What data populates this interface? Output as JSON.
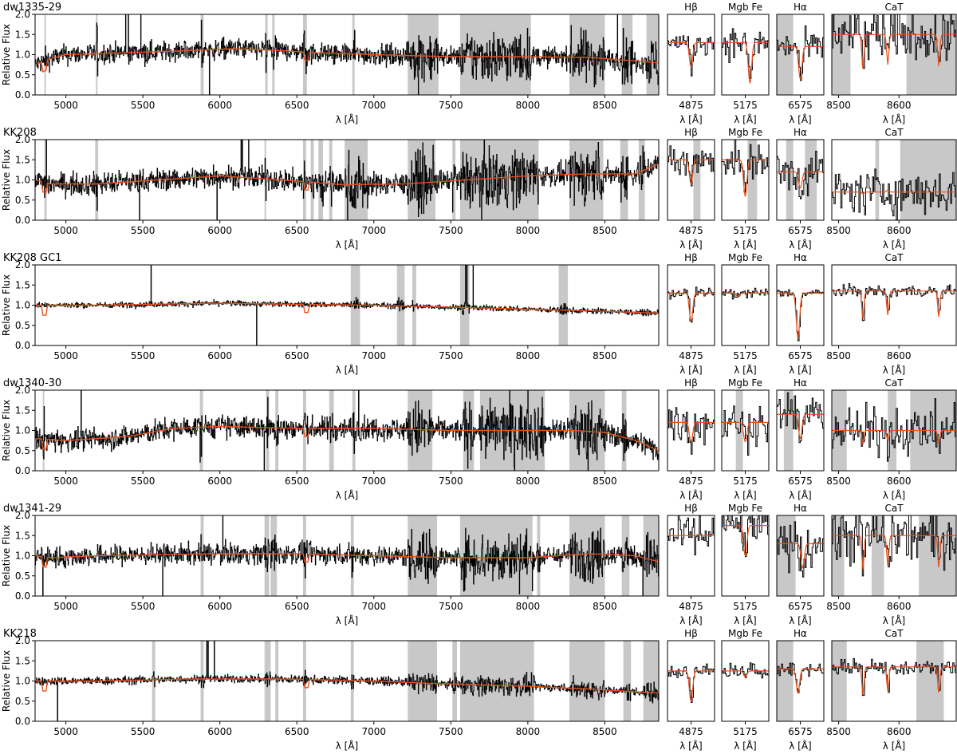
{
  "figure": {
    "ylabel": "Relative Flux",
    "xlabel": "λ [Å]",
    "colors": {
      "data": "#000000",
      "model": "#e8501c",
      "mask": "#c8c8c8"
    }
  },
  "chart_data": [
    {
      "type": "line",
      "title": "dw1335-29",
      "rows_note": "row 1",
      "main": {
        "xlim": [
          4800,
          8850
        ],
        "ylim": [
          0.0,
          2.0
        ],
        "xticks": [
          5000,
          5500,
          6000,
          6500,
          7000,
          7500,
          8000,
          8500
        ],
        "yticks": [
          0.0,
          0.5,
          1.0,
          1.5,
          2.0
        ],
        "noise": 0.18,
        "mask_ranges": [
          [
            4860,
            4870
          ],
          [
            5195,
            5205
          ],
          [
            5875,
            5895
          ],
          [
            6295,
            6310
          ],
          [
            6340,
            6355
          ],
          [
            6540,
            6565
          ],
          [
            6860,
            6875
          ],
          [
            7220,
            7420
          ],
          [
            7560,
            8020
          ],
          [
            8270,
            8500
          ],
          [
            8610,
            8680
          ],
          [
            8770,
            8850
          ]
        ],
        "model": [
          [
            4800,
            0.75
          ],
          [
            4900,
            0.9
          ],
          [
            5000,
            1.0
          ],
          [
            5400,
            1.05
          ],
          [
            5800,
            1.1
          ],
          [
            6100,
            1.15
          ],
          [
            6400,
            1.1
          ],
          [
            6600,
            1.05
          ],
          [
            7000,
            1.0
          ],
          [
            7500,
            0.95
          ],
          [
            8000,
            0.95
          ],
          [
            8400,
            0.93
          ],
          [
            8850,
            0.8
          ]
        ]
      },
      "zooms": [
        {
          "title": "Hβ",
          "xtick": "4875",
          "mask": [],
          "line": [
            0.5,
            0.35
          ],
          "level": 1.3,
          "noise": 0.2
        },
        {
          "title": "Mgb Fe",
          "xtick": "5175",
          "mask": [],
          "line": [
            0.6,
            0.15
          ],
          "level": 1.3,
          "noise": 0.25
        },
        {
          "title": "Hα",
          "xtick": "6575",
          "mask": [
            [
              0.0,
              0.35
            ]
          ],
          "line": [
            0.5,
            0.2
          ],
          "level": 1.2,
          "noise": 0.25
        },
        {
          "title": "CaT",
          "xticks": [
            "8500",
            "8600"
          ],
          "mask": [
            [
              0.0,
              0.15
            ],
            [
              0.6,
              1.0
            ]
          ],
          "level": 1.5,
          "noise": 0.5
        }
      ]
    },
    {
      "type": "line",
      "title": "KK208",
      "main": {
        "xlim": [
          4800,
          8850
        ],
        "ylim": [
          0.0,
          2.0
        ],
        "xticks": [
          5000,
          5500,
          6000,
          6500,
          7000,
          7500,
          8000,
          8500
        ],
        "yticks": [
          0.0,
          0.5,
          1.0,
          1.5,
          2.0
        ],
        "noise": 0.2,
        "mask_ranges": [
          [
            4860,
            4875
          ],
          [
            5190,
            5210
          ],
          [
            6290,
            6300
          ],
          [
            6540,
            6560
          ],
          [
            6590,
            6610
          ],
          [
            6640,
            6670
          ],
          [
            6710,
            6730
          ],
          [
            6810,
            6960
          ],
          [
            7220,
            7400
          ],
          [
            7510,
            7530
          ],
          [
            7560,
            8070
          ],
          [
            8270,
            8490
          ],
          [
            8600,
            8650
          ],
          [
            8720,
            8760
          ]
        ],
        "model": [
          [
            4800,
            1.0
          ],
          [
            4900,
            0.9
          ],
          [
            5200,
            0.9
          ],
          [
            5600,
            1.0
          ],
          [
            6000,
            1.1
          ],
          [
            6400,
            1.0
          ],
          [
            6800,
            0.88
          ],
          [
            7200,
            0.9
          ],
          [
            7600,
            1.0
          ],
          [
            8000,
            1.1
          ],
          [
            8400,
            1.15
          ],
          [
            8700,
            1.15
          ],
          [
            8850,
            1.4
          ]
        ]
      },
      "zooms": [
        {
          "title": "Hβ",
          "xtick": "4875",
          "mask": [
            [
              0.55,
              0.7
            ]
          ],
          "line": [
            0.5,
            0.8
          ],
          "level": 1.5,
          "noise": 0.3
        },
        {
          "title": "Mgb Fe",
          "xtick": "5175",
          "mask": [
            [
              0.55,
              0.75
            ]
          ],
          "line": [
            0.5,
            0.3
          ],
          "level": 1.5,
          "noise": 0.3
        },
        {
          "title": "Hα",
          "xtick": "6575",
          "mask": [
            [
              0.2,
              0.35
            ],
            [
              0.6,
              0.85
            ]
          ],
          "line": [
            0.5,
            0.4
          ],
          "level": 1.2,
          "noise": 0.4
        },
        {
          "title": "CaT",
          "xticks": [
            "8500",
            "8600"
          ],
          "mask": [
            [
              0.35,
              0.38
            ],
            [
              0.55,
              1.0
            ]
          ],
          "level": 0.7,
          "noise": 0.4
        }
      ]
    },
    {
      "type": "line",
      "title": "KK208 GC1",
      "main": {
        "xlim": [
          4800,
          8850
        ],
        "ylim": [
          0.0,
          2.0
        ],
        "xticks": [
          5000,
          5500,
          6000,
          6500,
          7000,
          7500,
          8000,
          8500
        ],
        "yticks": [
          0.0,
          0.5,
          1.0,
          1.5,
          2.0
        ],
        "noise": 0.05,
        "mask_ranges": [
          [
            6850,
            6910
          ],
          [
            7150,
            7200
          ],
          [
            7250,
            7275
          ],
          [
            7560,
            7620
          ],
          [
            8200,
            8260
          ]
        ],
        "model": [
          [
            4800,
            1.0
          ],
          [
            5200,
            1.0
          ],
          [
            6000,
            1.05
          ],
          [
            6500,
            1.02
          ],
          [
            7000,
            1.0
          ],
          [
            7500,
            0.95
          ],
          [
            8000,
            0.9
          ],
          [
            8500,
            0.85
          ],
          [
            8850,
            0.8
          ]
        ]
      },
      "zooms": [
        {
          "title": "Hβ",
          "xtick": "4875",
          "mask": [],
          "line": [
            0.5,
            0.3
          ],
          "level": 1.3,
          "noise": 0.1
        },
        {
          "title": "Mgb Fe",
          "xtick": "5175",
          "mask": [],
          "line": [
            0.35,
            0.6
          ],
          "level": 1.3,
          "noise": 0.1
        },
        {
          "title": "Hα",
          "xtick": "6575",
          "mask": [],
          "line": [
            0.45,
            0.1
          ],
          "level": 1.3,
          "noise": 0.08
        },
        {
          "title": "CaT",
          "xticks": [
            "8500",
            "8600"
          ],
          "mask": [],
          "level": 1.35,
          "noise": 0.1
        }
      ]
    },
    {
      "type": "line",
      "title": "dw1340-30",
      "main": {
        "xlim": [
          4800,
          8850
        ],
        "ylim": [
          0.0,
          2.0
        ],
        "xticks": [
          5000,
          5500,
          6000,
          6500,
          7000,
          7500,
          8000,
          8500
        ],
        "yticks": [
          0.0,
          0.5,
          1.0,
          1.5,
          2.0
        ],
        "noise": 0.2,
        "mask_ranges": [
          [
            4850,
            4860
          ],
          [
            5870,
            5890
          ],
          [
            6300,
            6320
          ],
          [
            6360,
            6380
          ],
          [
            6540,
            6560
          ],
          [
            6710,
            6740
          ],
          [
            6860,
            6880
          ],
          [
            7220,
            7380
          ],
          [
            7580,
            7650
          ],
          [
            7690,
            8110
          ],
          [
            8270,
            8500
          ],
          [
            8610,
            8640
          ]
        ],
        "model": [
          [
            4800,
            0.8
          ],
          [
            5000,
            0.75
          ],
          [
            5400,
            0.85
          ],
          [
            5700,
            1.05
          ],
          [
            6000,
            1.1
          ],
          [
            6500,
            1.05
          ],
          [
            7000,
            1.05
          ],
          [
            7500,
            1.0
          ],
          [
            8000,
            1.0
          ],
          [
            8300,
            1.0
          ],
          [
            8500,
            0.95
          ],
          [
            8700,
            0.75
          ],
          [
            8850,
            0.5
          ]
        ]
      },
      "zooms": [
        {
          "title": "Hβ",
          "xtick": "4875",
          "mask": [],
          "line": [
            0.5,
            0.8
          ],
          "level": 1.2,
          "noise": 0.4
        },
        {
          "title": "Mgb Fe",
          "xtick": "5175",
          "mask": [
            [
              0.3,
              0.45
            ]
          ],
          "line": [
            0.5,
            0.7
          ],
          "level": 1.2,
          "noise": 0.35
        },
        {
          "title": "Hα",
          "xtick": "6575",
          "mask": [
            [
              0.15,
              0.35
            ]
          ],
          "line": [
            0.5,
            0.4
          ],
          "level": 1.4,
          "noise": 0.35
        },
        {
          "title": "CaT",
          "xticks": [
            "8500",
            "8600"
          ],
          "mask": [
            [
              0.0,
              0.12
            ],
            [
              0.45,
              0.52
            ],
            [
              0.63,
              1.0
            ]
          ],
          "level": 1.0,
          "noise": 0.4
        }
      ]
    },
    {
      "type": "line",
      "title": "dw1341-29",
      "main": {
        "xlim": [
          4800,
          8850
        ],
        "ylim": [
          0.0,
          2.0
        ],
        "xticks": [
          5000,
          5500,
          6000,
          6500,
          7000,
          7500,
          8000,
          8500
        ],
        "yticks": [
          0.0,
          0.5,
          1.0,
          1.5,
          2.0
        ],
        "noise": 0.18,
        "mask_ranges": [
          [
            5875,
            5895
          ],
          [
            6290,
            6320
          ],
          [
            6330,
            6370
          ],
          [
            6540,
            6560
          ],
          [
            6850,
            6870
          ],
          [
            7220,
            7410
          ],
          [
            7560,
            8030
          ],
          [
            8060,
            8080
          ],
          [
            8270,
            8500
          ],
          [
            8610,
            8660
          ],
          [
            8750,
            8850
          ]
        ],
        "model": [
          [
            4800,
            1.0
          ],
          [
            4900,
            0.95
          ],
          [
            5200,
            1.0
          ],
          [
            6000,
            1.05
          ],
          [
            6500,
            1.05
          ],
          [
            7000,
            1.0
          ],
          [
            7500,
            0.95
          ],
          [
            8000,
            0.95
          ],
          [
            8400,
            1.05
          ],
          [
            8700,
            1.0
          ],
          [
            8850,
            0.85
          ]
        ]
      },
      "zooms": [
        {
          "title": "Hβ",
          "xtick": "4875",
          "mask": [],
          "line": [
            0.5,
            0.75
          ],
          "level": 1.5,
          "noise": 0.4
        },
        {
          "title": "Mgb Fe",
          "xtick": "5175",
          "mask": [],
          "line": [
            0.5,
            0.5
          ],
          "level": 1.75,
          "noise": 0.35
        },
        {
          "title": "Hα",
          "xtick": "6575",
          "mask": [
            [
              0.0,
              0.4
            ]
          ],
          "line": [
            0.55,
            0.35
          ],
          "level": 1.3,
          "noise": 0.4
        },
        {
          "title": "CaT",
          "xticks": [
            "8500",
            "8600"
          ],
          "mask": [
            [
              0.0,
              0.1
            ],
            [
              0.32,
              0.42
            ],
            [
              0.7,
              1.0
            ]
          ],
          "level": 1.5,
          "noise": 0.5
        }
      ]
    },
    {
      "type": "line",
      "title": "KK218",
      "main": {
        "xlim": [
          4800,
          8850
        ],
        "ylim": [
          0.0,
          2.0
        ],
        "xticks": [
          5000,
          5500,
          6000,
          6500,
          7000,
          7500,
          8000,
          8500
        ],
        "yticks": [
          0.0,
          0.5,
          1.0,
          1.5,
          2.0
        ],
        "noise": 0.07,
        "mask_ranges": [
          [
            5560,
            5580
          ],
          [
            5875,
            5895
          ],
          [
            6290,
            6330
          ],
          [
            6360,
            6380
          ],
          [
            6540,
            6560
          ],
          [
            6850,
            6870
          ],
          [
            7220,
            7410
          ],
          [
            7510,
            7540
          ],
          [
            7560,
            8040
          ],
          [
            8270,
            8500
          ],
          [
            8620,
            8670
          ],
          [
            8750,
            8850
          ]
        ],
        "model": [
          [
            4800,
            1.0
          ],
          [
            5200,
            1.0
          ],
          [
            5800,
            1.05
          ],
          [
            6400,
            1.05
          ],
          [
            7000,
            1.0
          ],
          [
            7300,
            0.95
          ],
          [
            7700,
            0.9
          ],
          [
            8000,
            0.87
          ],
          [
            8400,
            0.8
          ],
          [
            8850,
            0.7
          ]
        ]
      },
      "zooms": [
        {
          "title": "Hβ",
          "xtick": "4875",
          "mask": [],
          "line": [
            0.5,
            0.25
          ],
          "level": 1.25,
          "noise": 0.12
        },
        {
          "title": "Mgb Fe",
          "xtick": "5175",
          "mask": [],
          "line": [
            0.5,
            0.55
          ],
          "level": 1.25,
          "noise": 0.15
        },
        {
          "title": "Hα",
          "xtick": "6575",
          "mask": [
            [
              0.0,
              0.35
            ]
          ],
          "line": [
            0.45,
            0.35
          ],
          "level": 1.3,
          "noise": 0.12
        },
        {
          "title": "CaT",
          "xticks": [
            "8500",
            "8600"
          ],
          "mask": [
            [
              0.0,
              0.12
            ],
            [
              0.68,
              0.9
            ]
          ],
          "level": 1.35,
          "noise": 0.15
        }
      ]
    }
  ]
}
